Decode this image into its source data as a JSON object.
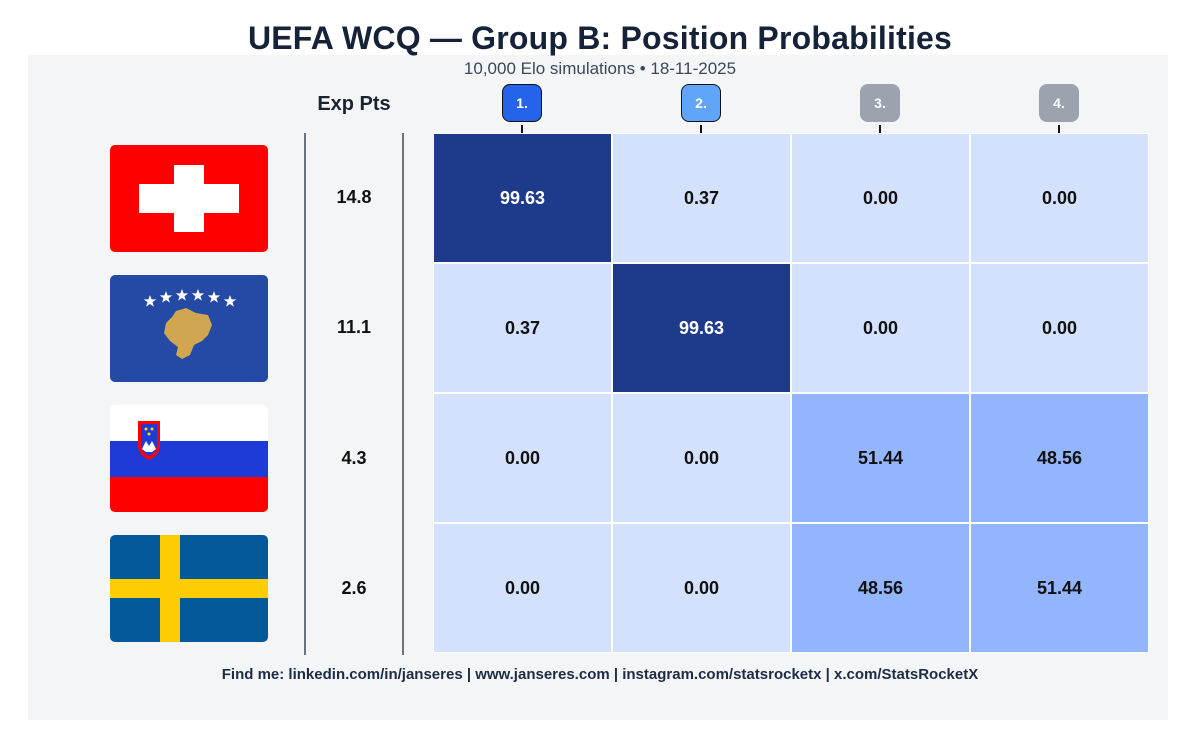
{
  "title": "UEFA WCQ — Group B: Position Probabilities",
  "subtitle": "10,000 Elo simulations • 18-11-2025",
  "footer": "Find me: linkedin.com/in/janseres | www.janseres.com | instagram.com/statsrocketx | x.com/StatsRocketX",
  "colors": {
    "badge_1": "#2563eb",
    "badge_2": "#60a5fa",
    "badge_3": "#9ca3af",
    "badge_4": "#9ca3af",
    "cell_high": "#1e3a8a",
    "cell_mid": "#93b5fd",
    "cell_low": "#d3e1fc"
  },
  "chart_data": {
    "type": "heatmap",
    "title": "UEFA WCQ — Group B: Position Probabilities",
    "subtitle": "10,000 Elo simulations • 18-11-2025",
    "exp_pts_label": "Exp Pts",
    "columns": [
      "1.",
      "2.",
      "3.",
      "4."
    ],
    "rows": [
      {
        "team_flag": "switzerland-flag",
        "exp_pts": "14.8",
        "values": [
          "99.63",
          "0.37",
          "0.00",
          "0.00"
        ]
      },
      {
        "team_flag": "kosovo-flag",
        "exp_pts": "11.1",
        "values": [
          "0.37",
          "99.63",
          "0.00",
          "0.00"
        ]
      },
      {
        "team_flag": "slovenia-flag",
        "exp_pts": "4.3",
        "values": [
          "0.00",
          "0.00",
          "51.44",
          "48.56"
        ]
      },
      {
        "team_flag": "sweden-flag",
        "exp_pts": "2.6",
        "values": [
          "0.00",
          "0.00",
          "48.56",
          "51.44"
        ]
      }
    ]
  }
}
